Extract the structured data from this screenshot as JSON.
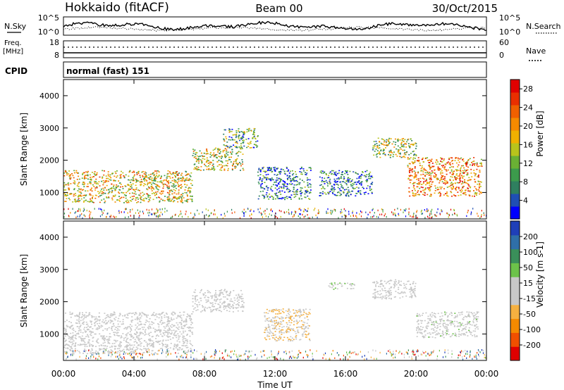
{
  "header": {
    "station": "Hokkaido (fitACF)",
    "beam": "Beam 00",
    "date": "30/Oct/2015"
  },
  "noise_panel": {
    "left_label": "N.Sky",
    "right_label": "N.Search",
    "left_ticks": [
      "10^5",
      "10^0"
    ],
    "right_ticks": [
      "10^5",
      "10^0"
    ]
  },
  "freq_panel": {
    "left_label_1": "Freq.",
    "left_label_2": "[MHz]",
    "right_label": "Nave",
    "left_ticks": [
      "18",
      "8"
    ],
    "right_ticks": [
      "60",
      "0"
    ]
  },
  "cpid": {
    "label": "CPID",
    "value": "normal (fast) 151"
  },
  "colors": {
    "power": [
      "#0000ff",
      "#1f4fb4",
      "#2f7f5f",
      "#3c9b4c",
      "#6ab034",
      "#b8c31c",
      "#f0b000",
      "#f58a00",
      "#f06000",
      "#ea2f00",
      "#e00000"
    ],
    "velocity": [
      "#e00000",
      "#f05000",
      "#f58a00",
      "#f5b040",
      "#c8c8c8",
      "#c8c8c8",
      "#6cc24a",
      "#3a8f5a",
      "#2f6fa8",
      "#1f3fb8"
    ]
  },
  "chart_data": [
    {
      "type": "heatmap",
      "name": "power",
      "ylabel": "Slant Range [km]",
      "ylim": [
        180,
        4500
      ],
      "yticks": [
        "1000",
        "2000",
        "3000",
        "4000"
      ],
      "xticks": [
        "00:00",
        "04:00",
        "08:00",
        "12:00",
        "16:00",
        "20:00",
        "00:00"
      ],
      "colorbar": {
        "label": "Power [dB]",
        "ticks": [
          "4",
          "8",
          "12",
          "16",
          "20",
          "24",
          "28"
        ],
        "range": [
          0,
          30
        ]
      },
      "regions": [
        {
          "t": [
            0.0,
            7.3
          ],
          "r": [
            700,
            1700
          ],
          "level": 0.55
        },
        {
          "t": [
            7.3,
            10.2
          ],
          "r": [
            1700,
            2400
          ],
          "level": 0.5
        },
        {
          "t": [
            9.0,
            11.0
          ],
          "r": [
            2400,
            3000
          ],
          "level": 0.35
        },
        {
          "t": [
            11.0,
            14.0
          ],
          "r": [
            800,
            1800
          ],
          "level": 0.2
        },
        {
          "t": [
            14.5,
            17.5
          ],
          "r": [
            900,
            1700
          ],
          "level": 0.2
        },
        {
          "t": [
            17.5,
            20.0
          ],
          "r": [
            2100,
            2700
          ],
          "level": 0.45
        },
        {
          "t": [
            19.5,
            23.7
          ],
          "r": [
            900,
            2100
          ],
          "level": 0.7
        }
      ]
    },
    {
      "type": "heatmap",
      "name": "velocity",
      "ylabel": "Slant Range [km]",
      "ylim": [
        180,
        4500
      ],
      "yticks": [
        "1000",
        "2000",
        "3000",
        "4000"
      ],
      "xticks": [
        "00:00",
        "04:00",
        "08:00",
        "12:00",
        "16:00",
        "20:00",
        "00:00"
      ],
      "xlabel": "Time UT",
      "colorbar": {
        "label": "Velocity [m s-1]",
        "ticks": [
          "-200",
          "-100",
          "-50",
          "-15",
          "15",
          "50",
          "100",
          "200"
        ],
        "range": [
          -250,
          250
        ]
      },
      "regions": [
        {
          "t": [
            0.0,
            7.3
          ],
          "r": [
            400,
            1700
          ],
          "value": 0
        },
        {
          "t": [
            7.3,
            10.2
          ],
          "r": [
            1700,
            2400
          ],
          "value": 5
        },
        {
          "t": [
            11.3,
            14.0
          ],
          "r": [
            800,
            1800
          ],
          "value": -45
        },
        {
          "t": [
            15.0,
            16.5
          ],
          "r": [
            2400,
            2600
          ],
          "value": 40
        },
        {
          "t": [
            17.5,
            20.0
          ],
          "r": [
            2100,
            2700
          ],
          "value": 0
        },
        {
          "t": [
            20.0,
            23.5
          ],
          "r": [
            900,
            1700
          ],
          "value": 25
        }
      ]
    }
  ]
}
